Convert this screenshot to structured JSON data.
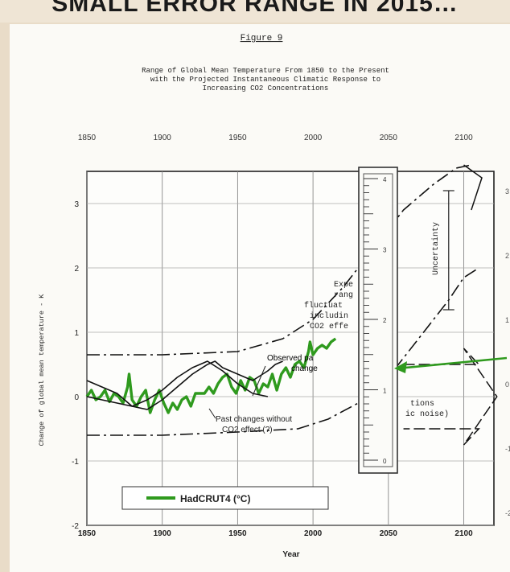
{
  "banner": {
    "text": "SMALL ERROR RANGE IN 2015…"
  },
  "figure": {
    "label": "Figure 9",
    "title_lines": [
      "Range of Global Mean Temperature From 1850 to the Present",
      "with the Projected Instantaneous Climatic Response to",
      "Increasing CO2 Concentrations"
    ]
  },
  "chart_data": {
    "type": "line",
    "title": "Range of Global Mean Temperature From 1850 to the Present with the Projected Instantaneous Climatic Response to Increasing CO2 Concentrations",
    "xlabel": "Year",
    "ylabel": "Change of global mean temperature - K",
    "xlim": [
      1850,
      2120
    ],
    "ylim": [
      -2,
      3.5
    ],
    "top_ticks": [
      "1850",
      "1900",
      "1950",
      "2000",
      "2050",
      "2100"
    ],
    "bottom_ticks": [
      "1850",
      "1900",
      "1950",
      "2000",
      "2050",
      "2100"
    ],
    "y_ticks": [
      "3",
      "2",
      "1",
      "0",
      "-1",
      "-2"
    ],
    "right_ticks": [
      "3",
      "2",
      "1",
      "0",
      "-1",
      "-2"
    ],
    "grid": true,
    "legend": {
      "position": "bottom-left",
      "entries": [
        "HadCRUT4 (°C)"
      ]
    },
    "annotations": {
      "expected": [
        "Expe",
        "rang",
        "fluctuat",
        "includin",
        "CO2 effe"
      ],
      "observed": [
        "Observed pa",
        "change"
      ],
      "past": [
        "Past changes without",
        "CO2 effect (?)"
      ],
      "natural": [
        "tions",
        "ic noise)"
      ],
      "uncertainty": "Uncertainty"
    },
    "ruler_ticks": [
      "4",
      "3",
      "2",
      "1",
      "0"
    ],
    "series": [
      {
        "name": "HadCRUT4 (°C)",
        "color": "#2f9a1e",
        "x": [
          1850,
          1853,
          1856,
          1859,
          1862,
          1865,
          1868,
          1871,
          1874,
          1877,
          1878,
          1880,
          1883,
          1886,
          1889,
          1892,
          1895,
          1898,
          1901,
          1904,
          1907,
          1910,
          1913,
          1916,
          1919,
          1922,
          1925,
          1928,
          1931,
          1934,
          1937,
          1940,
          1943,
          1946,
          1949,
          1952,
          1955,
          1958,
          1961,
          1964,
          1967,
          1970,
          1973,
          1976,
          1979,
          1982,
          1985,
          1988,
          1991,
          1994,
          1997,
          1998,
          2000,
          2003,
          2006,
          2009,
          2012,
          2015
        ],
        "y": [
          0.0,
          0.1,
          -0.05,
          0.0,
          0.1,
          -0.08,
          0.05,
          0.0,
          -0.1,
          0.15,
          0.35,
          -0.05,
          -0.15,
          0.0,
          0.1,
          -0.25,
          -0.05,
          0.1,
          -0.1,
          -0.25,
          -0.1,
          -0.2,
          -0.05,
          0.0,
          -0.15,
          0.05,
          0.05,
          0.05,
          0.15,
          0.05,
          0.2,
          0.3,
          0.35,
          0.15,
          0.05,
          0.25,
          0.1,
          0.3,
          0.25,
          0.05,
          0.2,
          0.15,
          0.35,
          0.1,
          0.35,
          0.45,
          0.3,
          0.5,
          0.55,
          0.45,
          0.7,
          0.85,
          0.65,
          0.75,
          0.8,
          0.75,
          0.85,
          0.9
        ]
      },
      {
        "name": "",
        "color": "#111111",
        "x": [
          1850,
          1860,
          1870,
          1880,
          1890,
          1900,
          1910,
          1920,
          1930,
          1935,
          1940,
          1950,
          1960,
          1970,
          1975,
          1980
        ],
        "y": [
          0.25,
          0.15,
          0.05,
          -0.15,
          -0.2,
          -0.05,
          0.15,
          0.35,
          0.5,
          0.55,
          0.45,
          0.35,
          0.25,
          0.4,
          0.5,
          0.55
        ]
      },
      {
        "name": "",
        "color": "#111111",
        "x": [
          1850,
          1860,
          1870,
          1880,
          1890,
          1900,
          1910,
          1920,
          1930,
          1940,
          1950,
          1960,
          1970
        ],
        "y": [
          0.0,
          -0.05,
          -0.1,
          -0.15,
          -0.05,
          0.1,
          0.3,
          0.45,
          0.55,
          0.4,
          0.2,
          0.05,
          0.0
        ]
      },
      {
        "name": "",
        "color": "#111111",
        "dash": true,
        "x": [
          1850,
          1900,
          1950,
          1980,
          2000,
          2020,
          2040,
          2060,
          2080,
          2095,
          2105
        ],
        "y": [
          0.65,
          0.65,
          0.7,
          0.9,
          1.2,
          1.7,
          2.3,
          2.9,
          3.3,
          3.55,
          3.6
        ]
      },
      {
        "name": "",
        "color": "#111111",
        "dash": true,
        "x": [
          1850,
          1900,
          1950,
          1990,
          2010,
          2030,
          2050,
          2070,
          2090,
          2100,
          2110
        ],
        "y": [
          -0.6,
          -0.6,
          -0.55,
          -0.5,
          -0.35,
          -0.1,
          0.3,
          0.9,
          1.5,
          1.85,
          2.0
        ]
      }
    ]
  }
}
